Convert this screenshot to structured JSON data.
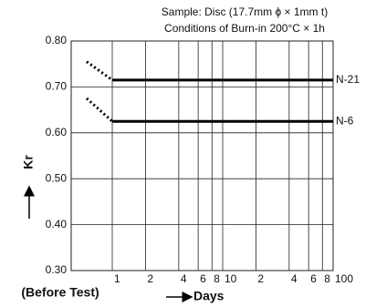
{
  "chart_data": {
    "type": "line",
    "title": "Sample: Disc (17.7mm ϕ × 1mm t)",
    "subtitle": "Conditions of Burn-in 200°C × 1h",
    "x_label": "Days",
    "y_label": "Kr",
    "before_test_label": "(Before Test)",
    "x_log": true,
    "x": [
      1,
      100
    ],
    "xlim": [
      1,
      100
    ],
    "xticks": [
      1,
      2,
      4,
      6,
      8,
      10,
      {
        "value": 20,
        "label": "2"
      },
      {
        "value": 40,
        "label": "4"
      },
      {
        "value": 60,
        "label": "6"
      },
      {
        "value": 80,
        "label": "8"
      },
      100
    ],
    "ylim": [
      0.3,
      0.8
    ],
    "yticks": [
      {
        "value": 0.3,
        "label": "0.30"
      },
      {
        "value": 0.4,
        "label": "0.40"
      },
      {
        "value": 0.5,
        "label": "0.50"
      },
      {
        "value": 0.6,
        "label": "0.60"
      },
      {
        "value": 0.7,
        "label": "0.70"
      },
      {
        "value": 0.8,
        "label": "0.80"
      }
    ],
    "grid": true,
    "series": [
      {
        "name": "N-21",
        "color": "#000000",
        "before_test": 0.755,
        "values": [
          0.715,
          0.715
        ]
      },
      {
        "name": "N-6",
        "color": "#000000",
        "before_test": 0.675,
        "values": [
          0.625,
          0.625
        ]
      }
    ]
  }
}
